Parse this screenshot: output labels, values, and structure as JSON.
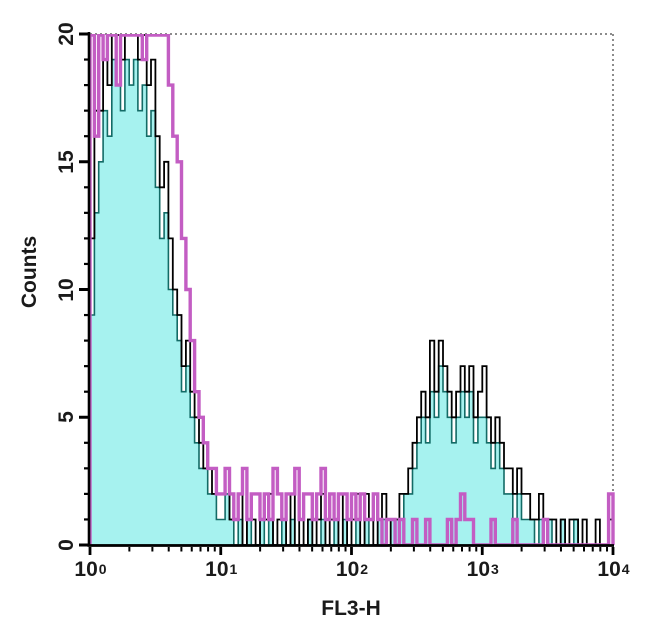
{
  "figure": {
    "xlabel": "FL3-H",
    "ylabel": "Counts"
  },
  "chart_data": {
    "type": "histogram",
    "subtype": "flow-cytometry-overlay",
    "title": "",
    "xlabel": "FL3-H",
    "ylabel": "Counts",
    "xscale": "log",
    "xlim_exponents": [
      0,
      4
    ],
    "ylim": [
      0,
      20
    ],
    "y_major_ticks": [
      0,
      5,
      10,
      15,
      20
    ],
    "y_minor_step": 1,
    "x_major_tick_exponents": [
      0,
      1,
      2,
      3,
      4
    ],
    "x_tick_base": "10",
    "x_minor_multiples": [
      2,
      3,
      4,
      5,
      6,
      7,
      8,
      9
    ],
    "grid": false,
    "legend": null,
    "frame_color": "#8c8c8c",
    "axis_color": "#000000",
    "bins_per_decade": 30,
    "clip_value": 20,
    "series": [
      {
        "name": "filled-cyan-histogram",
        "role": "filled",
        "fill": "#a6f2ef",
        "stroke": "#136b66",
        "stroke_width": 1.6,
        "values": [
          9,
          13,
          15,
          17,
          16,
          19,
          18,
          17,
          19,
          18,
          19,
          17,
          18,
          16,
          17,
          14,
          12,
          13,
          10,
          9,
          8,
          6,
          7,
          5,
          4,
          3,
          3,
          2,
          2,
          1,
          1,
          2,
          1,
          0,
          1,
          0,
          1,
          0,
          0,
          1,
          0,
          1,
          0,
          0,
          1,
          0,
          1,
          0,
          0,
          0,
          1,
          0,
          0,
          1,
          0,
          0,
          1,
          0,
          1,
          0,
          0,
          1,
          0,
          1,
          0,
          0,
          1,
          1,
          0,
          1,
          1,
          1,
          2,
          2,
          3,
          4,
          5,
          4,
          6,
          5,
          7,
          6,
          5,
          4,
          5,
          6,
          5,
          6,
          4,
          5,
          5,
          4,
          3,
          4,
          3,
          2,
          2,
          1,
          2,
          1,
          1,
          1,
          0,
          1,
          0,
          1,
          0,
          0,
          1,
          0,
          0,
          1,
          0,
          0,
          0,
          0,
          0,
          0,
          0,
          0
        ]
      },
      {
        "name": "black-open-histogram",
        "role": "open",
        "stroke": "#000000",
        "stroke_width": 1.8,
        "values": [
          12,
          17,
          17,
          19,
          18,
          21,
          20,
          19,
          21,
          20,
          21,
          19,
          20,
          18,
          19,
          16,
          14,
          15,
          12,
          10,
          9,
          7,
          8,
          6,
          5,
          4,
          3,
          3,
          2,
          2,
          2,
          3,
          1,
          1,
          2,
          0,
          1,
          1,
          0,
          1,
          1,
          2,
          0,
          1,
          1,
          0,
          2,
          0,
          1,
          0,
          1,
          0,
          1,
          2,
          0,
          1,
          1,
          0,
          2,
          0,
          1,
          2,
          0,
          2,
          1,
          0,
          1,
          2,
          0,
          1,
          1,
          2,
          2,
          3,
          4,
          5,
          6,
          5,
          8,
          6,
          8,
          7,
          6,
          5,
          6,
          7,
          6,
          7,
          5,
          6,
          7,
          5,
          4,
          5,
          4,
          3,
          3,
          2,
          3,
          2,
          2,
          1,
          1,
          2,
          0,
          1,
          1,
          0,
          1,
          0,
          1,
          1,
          0,
          1,
          0,
          0,
          1,
          0,
          0,
          1
        ]
      },
      {
        "name": "magenta-open-histogram",
        "role": "open",
        "stroke": "#c35dc3",
        "stroke_width": 3.4,
        "values": [
          21,
          16,
          21,
          19,
          21,
          21,
          18,
          21,
          21,
          20,
          21,
          21,
          19,
          21,
          21,
          20,
          21,
          21,
          18,
          16,
          15,
          12,
          10,
          8,
          6,
          5,
          4,
          3,
          3,
          2,
          2,
          3,
          2,
          1,
          2,
          3,
          1,
          2,
          2,
          1,
          2,
          1,
          3,
          2,
          1,
          2,
          2,
          3,
          1,
          2,
          2,
          1,
          2,
          3,
          1,
          2,
          1,
          2,
          2,
          1,
          2,
          1,
          2,
          1,
          1,
          2,
          1,
          0,
          1,
          1,
          0,
          1,
          0,
          0,
          1,
          0,
          0,
          1,
          0,
          0,
          0,
          0,
          1,
          0,
          1,
          2,
          1,
          1,
          0,
          0,
          0,
          0,
          1,
          0,
          0,
          0,
          0,
          1,
          0,
          0,
          0,
          0,
          0,
          0,
          1,
          0,
          0,
          0,
          0,
          0,
          0,
          0,
          0,
          0,
          0,
          0,
          0,
          0,
          0,
          2
        ]
      }
    ]
  }
}
